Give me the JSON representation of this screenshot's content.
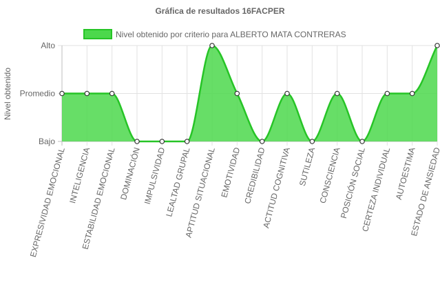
{
  "chart_data": {
    "type": "area",
    "title": "Gráfica de resultados 16FACPER",
    "xlabel": "",
    "ylabel": "Nivel obtenido",
    "y_levels": [
      "Bajo",
      "Promedio",
      "Alto"
    ],
    "ylim": [
      0,
      2
    ],
    "grid": true,
    "legend_position": "top",
    "categories": [
      "EXPRESIVIDAD EMOCIONAL",
      "INTELIGENCIA",
      "ESTABILIDAD EMOCIONAL",
      "DOMINACIÓN",
      "IMPULSIVIDAD",
      "LEALTAD GRUPAL",
      "APTITUD SITUACIONAL",
      "EMOTIVIDAD",
      "CREDIBILIDAD",
      "ACTITUD COGNITIVA",
      "SUTILEZA",
      "CONSCIENCIA",
      "POSICIÓN SOCIAL",
      "CERTEZA INDIVIDUAL",
      "AUTOESTIMA",
      "ESTADO DE ANSIEDAD"
    ],
    "series": [
      {
        "name": "Nivel obtenido por criterio para ALBERTO MATA CONTRERAS",
        "values": [
          1,
          1,
          1,
          0,
          0,
          0,
          2,
          1,
          0,
          1,
          0,
          1,
          0,
          1,
          1,
          2
        ],
        "line_color": "#26c426",
        "fill_color": "#4cd84c"
      }
    ]
  }
}
